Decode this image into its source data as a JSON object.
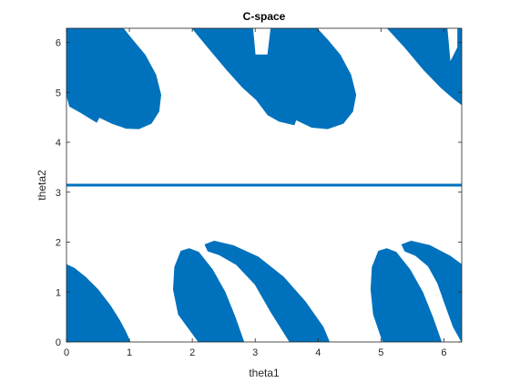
{
  "chart_data": {
    "type": "scatter",
    "title": "C-space",
    "xlabel": "theta1",
    "ylabel": "theta2",
    "xlim": [
      0,
      6.2832
    ],
    "ylim": [
      0,
      6.2832
    ],
    "xticks": [
      0,
      1,
      2,
      3,
      4,
      5,
      6
    ],
    "yticks": [
      0,
      1,
      2,
      3,
      4,
      5,
      6
    ],
    "xtick_labels": [
      "0",
      "1",
      "2",
      "3",
      "4",
      "5",
      "6"
    ],
    "ytick_labels": [
      "0",
      "1",
      "2",
      "3",
      "4",
      "5",
      "6"
    ],
    "grid": false,
    "box": true,
    "fill_color": "#0072BD",
    "series": [
      {
        "kind": "obstacle_region",
        "polygon": [
          [
            0,
            0
          ],
          [
            0,
            1.55
          ],
          [
            0.12,
            1.48
          ],
          [
            0.3,
            1.3
          ],
          [
            0.5,
            1.05
          ],
          [
            0.7,
            0.72
          ],
          [
            0.85,
            0.42
          ],
          [
            0.95,
            0.18
          ],
          [
            1.01,
            0
          ]
        ]
      },
      {
        "kind": "obstacle_region",
        "polygon": [
          [
            2.1,
            0
          ],
          [
            1.78,
            0.55
          ],
          [
            1.7,
            1.05
          ],
          [
            1.72,
            1.5
          ],
          [
            1.82,
            1.82
          ],
          [
            1.95,
            1.87
          ],
          [
            2.1,
            1.8
          ],
          [
            2.32,
            1.45
          ],
          [
            2.52,
            1.0
          ],
          [
            2.68,
            0.5
          ],
          [
            2.82,
            0
          ]
        ]
      },
      {
        "kind": "obstacle_region",
        "polygon": [
          [
            2.2,
            1.95
          ],
          [
            2.35,
            2.02
          ],
          [
            2.65,
            1.93
          ],
          [
            3.05,
            1.7
          ],
          [
            3.45,
            1.3
          ],
          [
            3.8,
            0.8
          ],
          [
            4.08,
            0.3
          ],
          [
            4.18,
            0
          ],
          [
            3.55,
            0
          ],
          [
            3.25,
            0.6
          ],
          [
            3.0,
            1.15
          ],
          [
            2.7,
            1.55
          ],
          [
            2.42,
            1.75
          ],
          [
            2.25,
            1.82
          ]
        ]
      },
      {
        "kind": "obstacle_region",
        "polygon": [
          [
            5.03,
            0
          ],
          [
            4.88,
            0.55
          ],
          [
            4.84,
            1.05
          ],
          [
            4.86,
            1.5
          ],
          [
            4.96,
            1.82
          ],
          [
            5.09,
            1.87
          ],
          [
            5.24,
            1.8
          ],
          [
            5.46,
            1.45
          ],
          [
            5.66,
            1.0
          ],
          [
            5.82,
            0.5
          ],
          [
            5.96,
            0
          ]
        ]
      },
      {
        "kind": "obstacle_region",
        "polygon": [
          [
            5.33,
            1.95
          ],
          [
            5.48,
            2.02
          ],
          [
            5.78,
            1.93
          ],
          [
            6.1,
            1.72
          ],
          [
            6.2832,
            1.55
          ],
          [
            6.2832,
            0
          ],
          [
            6.15,
            0.3
          ],
          [
            6.02,
            0.75
          ],
          [
            5.9,
            1.18
          ],
          [
            5.75,
            1.52
          ],
          [
            5.55,
            1.73
          ],
          [
            5.38,
            1.82
          ]
        ]
      },
      {
        "kind": "obstacle_region",
        "polygon": [
          [
            0,
            6.2832
          ],
          [
            0,
            4.95
          ],
          [
            0.05,
            4.72
          ],
          [
            0.22,
            4.6
          ],
          [
            0.48,
            4.4
          ],
          [
            0.52,
            4.5
          ],
          [
            0.72,
            4.38
          ],
          [
            0.95,
            4.28
          ],
          [
            1.15,
            4.27
          ],
          [
            1.35,
            4.38
          ],
          [
            1.47,
            4.62
          ],
          [
            1.5,
            4.95
          ],
          [
            1.42,
            5.35
          ],
          [
            1.25,
            5.75
          ],
          [
            1.05,
            6.05
          ],
          [
            0.9,
            6.2832
          ]
        ]
      },
      {
        "kind": "obstacle_region",
        "polygon": [
          [
            2.0,
            6.2832
          ],
          [
            2.25,
            5.9
          ],
          [
            2.55,
            5.45
          ],
          [
            2.8,
            5.1
          ],
          [
            3.02,
            4.85
          ],
          [
            3.2,
            4.55
          ],
          [
            3.38,
            4.42
          ],
          [
            3.62,
            4.35
          ],
          [
            3.65,
            4.45
          ],
          [
            3.9,
            4.3
          ],
          [
            4.15,
            4.27
          ],
          [
            4.4,
            4.38
          ],
          [
            4.55,
            4.62
          ],
          [
            4.6,
            4.95
          ],
          [
            4.52,
            5.35
          ],
          [
            4.35,
            5.75
          ],
          [
            4.15,
            6.05
          ],
          [
            3.98,
            6.2832
          ],
          [
            3.25,
            6.2832
          ],
          [
            3.2,
            5.75
          ],
          [
            3.0,
            5.75
          ],
          [
            2.96,
            6.2832
          ]
        ]
      },
      {
        "kind": "obstacle_region",
        "polygon": [
          [
            5.1,
            6.2832
          ],
          [
            5.38,
            5.9
          ],
          [
            5.68,
            5.45
          ],
          [
            5.95,
            5.1
          ],
          [
            6.15,
            4.88
          ],
          [
            6.2832,
            4.75
          ],
          [
            6.2832,
            6.2832
          ],
          [
            6.22,
            6.2832
          ],
          [
            6.22,
            5.9
          ],
          [
            6.1,
            5.6
          ],
          [
            6.05,
            6.2832
          ]
        ]
      },
      {
        "kind": "singular_line",
        "y": 3.1416
      }
    ]
  }
}
